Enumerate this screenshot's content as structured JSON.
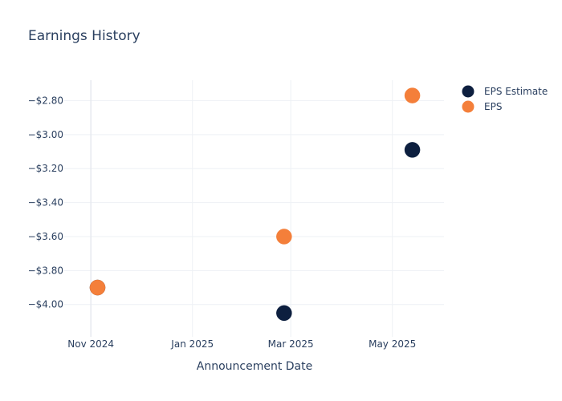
{
  "chart_data": {
    "type": "scatter",
    "title": "Earnings History",
    "xlabel": "Announcement Date",
    "ylabel": "",
    "x_ticks": [
      {
        "date": "2024-11-01",
        "label": "Nov 2024"
      },
      {
        "date": "2025-01-01",
        "label": "Jan 2025"
      },
      {
        "date": "2025-03-01",
        "label": "Mar 2025"
      },
      {
        "date": "2025-05-01",
        "label": "May 2025"
      }
    ],
    "y_ticks": [
      {
        "value": -2.8,
        "label": "−$2.80"
      },
      {
        "value": -3.0,
        "label": "−$3.00"
      },
      {
        "value": -3.2,
        "label": "−$3.20"
      },
      {
        "value": -3.4,
        "label": "−$3.40"
      },
      {
        "value": -3.6,
        "label": "−$3.60"
      },
      {
        "value": -3.8,
        "label": "−$3.80"
      },
      {
        "value": -4.0,
        "label": "−$4.00"
      }
    ],
    "xlim": [
      "2024-10-16",
      "2025-06-01"
    ],
    "ylim": [
      -4.19,
      -2.68
    ],
    "grid": true,
    "legend_position": "top-right",
    "series": [
      {
        "name": "EPS Estimate",
        "color": "#0d1f3f",
        "points": [
          {
            "x": "2024-11-05",
            "y": -3.9
          },
          {
            "x": "2025-02-25",
            "y": -4.05
          },
          {
            "x": "2025-05-13",
            "y": -3.09
          }
        ]
      },
      {
        "name": "EPS",
        "color": "#f47f3a",
        "points": [
          {
            "x": "2024-11-05",
            "y": -3.9
          },
          {
            "x": "2025-02-25",
            "y": -3.6
          },
          {
            "x": "2025-05-13",
            "y": -2.77
          }
        ]
      }
    ]
  }
}
